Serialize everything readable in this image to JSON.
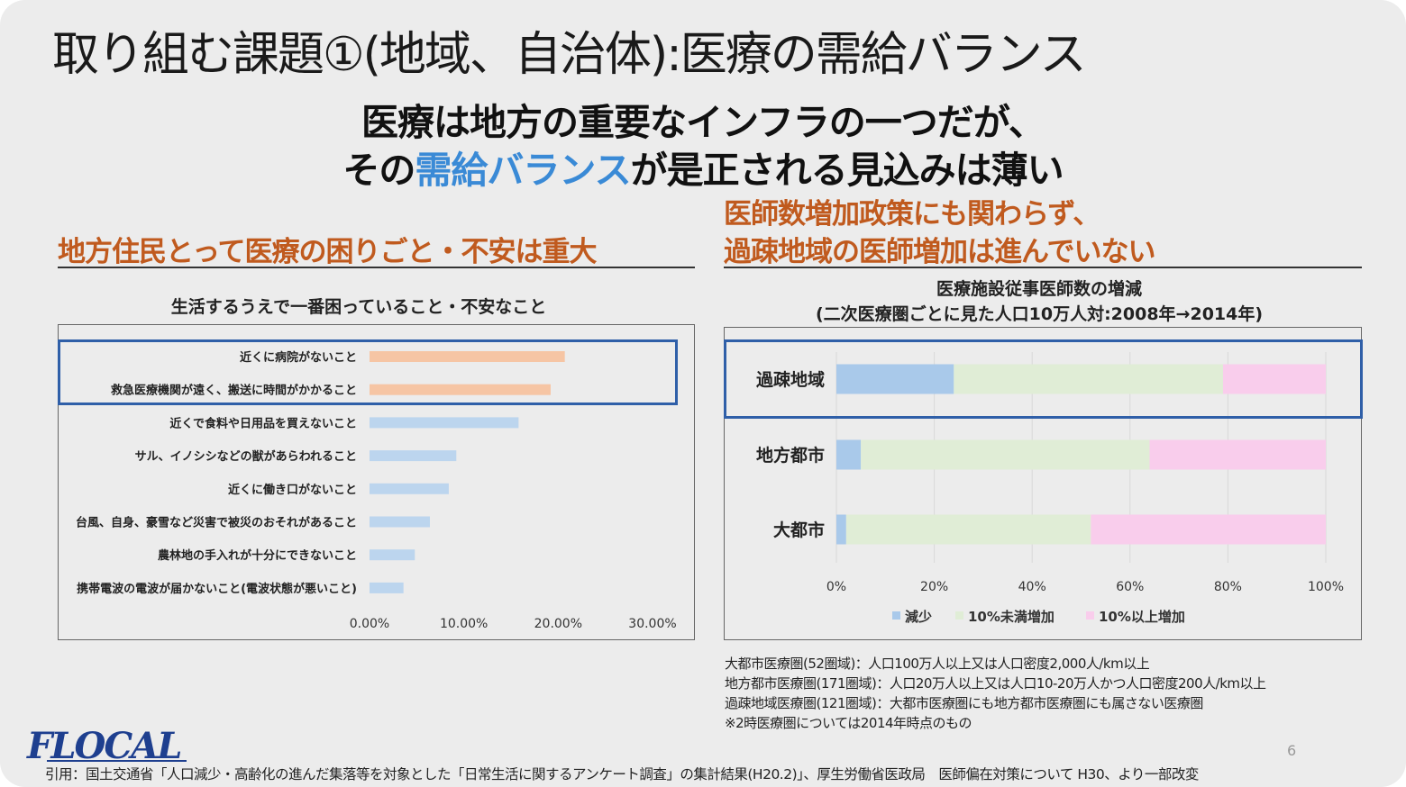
{
  "slide": {
    "title": "取り組む課題①(地域、自治体):医療の需給バランス",
    "headline": {
      "line1": "医療は地方の重要なインフラの一つだが、",
      "line2_pre": "その",
      "line2_highlight": "需給バランス",
      "line2_post": "が是正される見込みは薄い"
    },
    "left_section_title": "地方住民とって医療の困りごと・不安は重大",
    "right_section_title_line1": "医師数増加政策にも関わらず、",
    "right_section_title_line2": "過疎地域の医師増加は進んでいない",
    "notes": [
      "大都市医療圏(52圏域)：人口100万人以上又は人口密度2,000人/km以上",
      "地方都市医療圏(171圏域)：人口20万人以上又は人口10-20万人かつ人口密度200人/km以上",
      "過疎地域医療圏(121圏域)：大都市医療圏にも地方都市医療圏にも属さない医療圏",
      "※2時医療圏については2014年時点のもの"
    ],
    "logo": "FLOCAL",
    "page_number": "6",
    "citation": "引用：国土交通省「人口減少・高齢化の進んだ集落等を対象とした「日常生活に関するアンケート調査」の集計結果(H20.2)」、厚生労働省医政局　医師偏在対策について H30、より一部改変"
  },
  "colors": {
    "title_orange": "#c05a1e",
    "highlight_blue": "#3a8ad6",
    "box_blue": "#2f5fa8",
    "bar_orange": "#f6c5a4",
    "bar_blue": "#bcd5ee",
    "seg_decrease": "#a9c9ea",
    "seg_under10": "#e0edd6",
    "seg_over10": "#f9cdec"
  },
  "chart_data": [
    {
      "type": "bar",
      "orientation": "horizontal",
      "title": "生活するうえで一番困っていること・不安なこと",
      "categories": [
        "近くに病院がないこと",
        "救急医療機関が遠く、搬送に時間がかかること",
        "近くで食料や日用品を買えないこと",
        "サル、イノシシなどの獣があらわれること",
        "近くに働き口がないこと",
        "台風、自身、豪雪など災害で被災のおそれがあること",
        "農林地の手入れが十分にできないこと",
        "携帯電波の電波が届かないこと(電波状態が悪いこと)"
      ],
      "values": [
        20.7,
        19.2,
        15.8,
        9.2,
        8.4,
        6.4,
        4.8,
        3.6
      ],
      "highlighted": [
        true,
        true,
        false,
        false,
        false,
        false,
        false,
        false
      ],
      "xlim": [
        0,
        30
      ],
      "xticks": [
        "0.00%",
        "10.00%",
        "20.00%",
        "30.00%"
      ],
      "xtick_values": [
        0,
        10,
        20,
        30
      ]
    },
    {
      "type": "bar",
      "orientation": "horizontal",
      "stacked": true,
      "percent": true,
      "title_line1": "医療施設従事医師数の増減",
      "title_line2": "(二次医療圏ごとに見た人口10万人対:2008年→2014年)",
      "categories": [
        "過疎地域",
        "地方都市",
        "大都市"
      ],
      "series": [
        {
          "name": "減少",
          "values": [
            24,
            5,
            2
          ]
        },
        {
          "name": "10%未満増加",
          "values": [
            55,
            59,
            50
          ]
        },
        {
          "name": "10%以上増加",
          "values": [
            21,
            36,
            48
          ]
        }
      ],
      "highlighted": [
        true,
        false,
        false
      ],
      "xlim": [
        0,
        100
      ],
      "xticks": [
        "0%",
        "20%",
        "40%",
        "60%",
        "80%",
        "100%"
      ],
      "xtick_values": [
        0,
        20,
        40,
        60,
        80,
        100
      ],
      "legend_position": "bottom"
    }
  ]
}
